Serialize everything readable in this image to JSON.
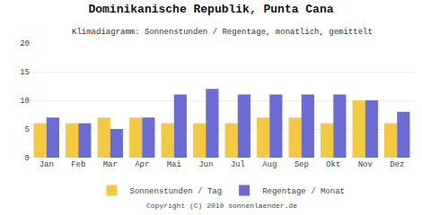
{
  "chart_data": {
    "type": "bar",
    "title": "Dominikanische Republik, Punta Cana",
    "subtitle": "Klimadiagramm: Sonnenstunden / Regentage, monatlich, gemittelt",
    "categories": [
      "Jan",
      "Feb",
      "Mar",
      "Apr",
      "Mai",
      "Jun",
      "Jul",
      "Aug",
      "Sep",
      "Okt",
      "Nov",
      "Dez"
    ],
    "series": [
      {
        "name": "Sonnenstunden / Tag",
        "color": "#f5c842",
        "values": [
          6,
          6,
          7,
          7,
          6,
          6,
          6,
          7,
          7,
          6,
          10,
          6
        ]
      },
      {
        "name": "Regentage / Monat",
        "color": "#6b6bd4",
        "values": [
          7,
          6,
          5,
          7,
          11,
          12,
          11,
          11,
          11,
          11,
          10,
          8
        ]
      }
    ],
    "ylim": [
      0,
      20
    ],
    "yticks": [
      0,
      5,
      10,
      15,
      20
    ],
    "grid": true,
    "legend": "bottom",
    "annotations": [
      "Copyright (C) 2010 sonnenlaender.de"
    ]
  }
}
